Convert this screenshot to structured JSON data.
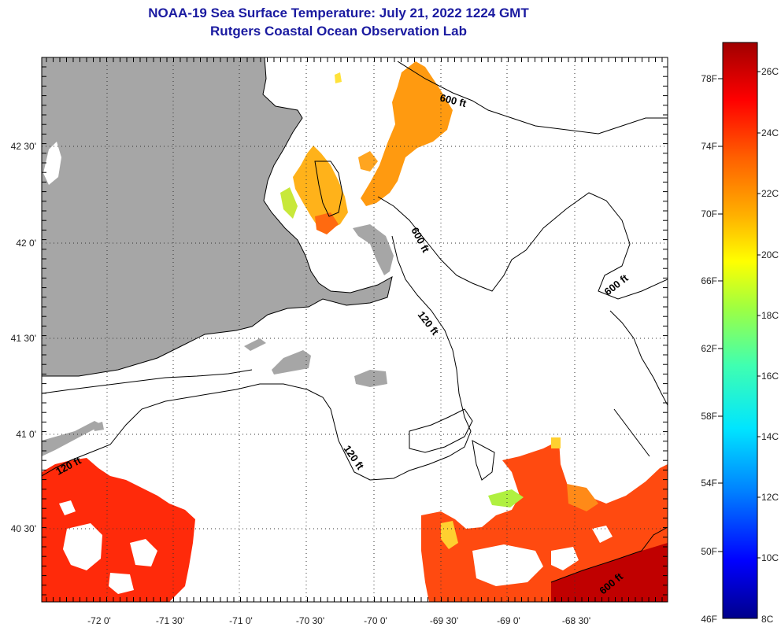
{
  "title": "NOAA-19 Sea Surface Temperature:  July 21, 2022 1224 GMT",
  "subtitle": "Rutgers Coastal Ocean Observation Lab",
  "axes": {
    "longitude_labels": [
      "-72 0'",
      "-71 30'",
      "-71 0'",
      "-70 30'",
      "-70 0'",
      "-69 30'",
      "-69 0'",
      "-68 30'"
    ],
    "latitude_labels": [
      "42 30'",
      "42 0'",
      "41 30'",
      "41 0'",
      "40 30'"
    ]
  },
  "contour_labels": [
    "600 ft",
    "600 ft",
    "600 ft",
    "120 ft",
    "120 ft",
    "120 ft",
    "600 ft"
  ],
  "colorbar": {
    "fahrenheit_labels": [
      "78F",
      "74F",
      "70F",
      "66F",
      "62F",
      "58F",
      "54F",
      "50F",
      "46F"
    ],
    "celsius_labels": [
      "26C",
      "24C",
      "22C",
      "20C",
      "18C",
      "16C",
      "14C",
      "12C",
      "10C",
      "8C"
    ],
    "range_celsius": [
      8,
      27
    ],
    "colors": [
      "#00008b",
      "#0000ff",
      "#0080ff",
      "#00e5ff",
      "#40ffb0",
      "#a0ff40",
      "#ffff00",
      "#ffb000",
      "#ff6000",
      "#ff0000",
      "#a00000"
    ]
  },
  "colors": {
    "land": "#a6a6a6",
    "no_data": "#ffffff",
    "title": "#1a1aa0"
  }
}
